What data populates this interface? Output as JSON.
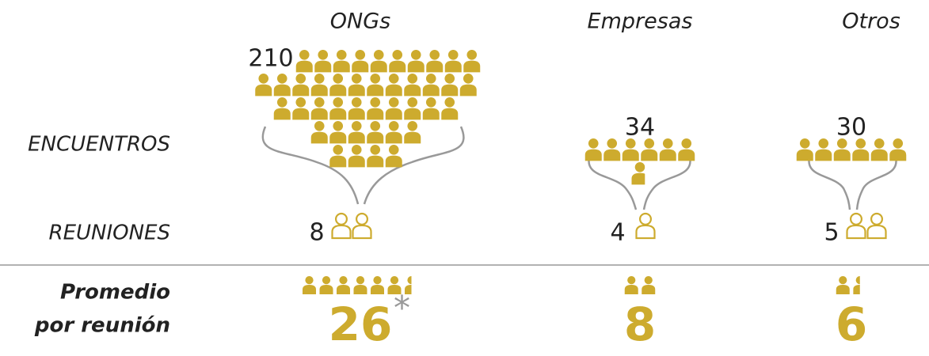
{
  "columns": [
    {
      "name": "ONGs",
      "encuentros": 210,
      "reuniones": 8,
      "promedio": 26,
      "note": "*"
    },
    {
      "name": "Empresas",
      "encuentros": 34,
      "reuniones": 4,
      "promedio": 8
    },
    {
      "name": "Otros",
      "encuentros": 30,
      "reuniones": 5,
      "promedio": 6
    }
  ],
  "row_labels": {
    "encuentros": "ENCUENTROS",
    "reuniones": "REUNIONES",
    "promedio": [
      "Promedio",
      "por reunión"
    ]
  },
  "color": "#cdab2e"
}
